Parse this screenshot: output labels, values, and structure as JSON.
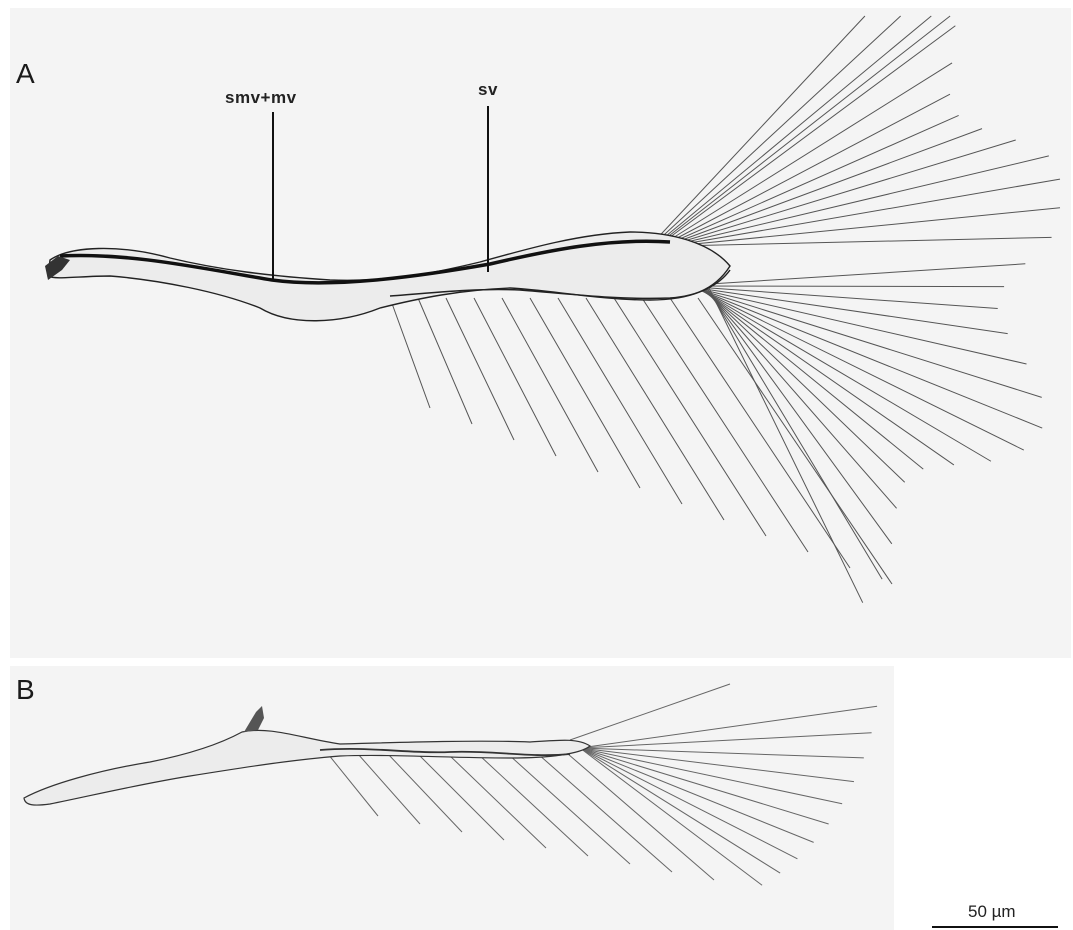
{
  "panels": {
    "a": {
      "letter": "A",
      "labels": {
        "smv": "smv+mv",
        "sv": "sv"
      }
    },
    "b": {
      "letter": "B"
    }
  },
  "scale": {
    "label": "50 µm"
  },
  "colors": {
    "background": "#f4f4f4",
    "structure": "#1a1a1a",
    "setae": "#555555"
  }
}
